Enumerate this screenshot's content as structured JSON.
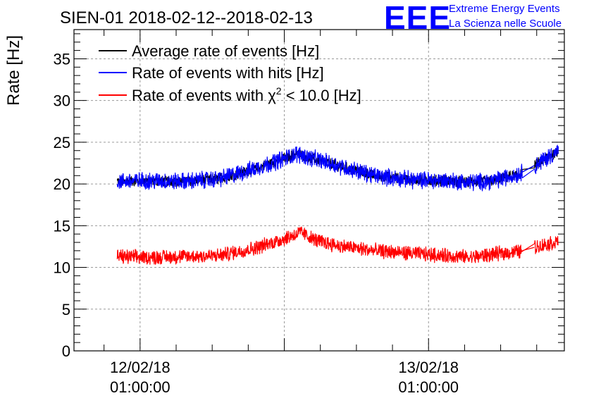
{
  "chart_data": {
    "type": "line",
    "title": "SIEN-01 2018-02-12--2018-02-13",
    "xlabel": "",
    "ylabel": "Rate [Hz]",
    "ylim": [
      0,
      38.5
    ],
    "xlim": [
      0,
      40.8
    ],
    "x_unit": "hours since 2018-02-11 19:30 (approx)",
    "yticks": [
      0,
      5,
      10,
      15,
      20,
      25,
      30,
      35
    ],
    "xticks": [
      {
        "x": 5.5,
        "label_line1": "12/02/18",
        "label_line2": "01:00:00"
      },
      {
        "x": 29.5,
        "label_line1": "13/02/18",
        "label_line2": "01:00:00"
      }
    ],
    "grid": true,
    "legend_position": "top-left",
    "series": [
      {
        "name": "Average rate of events [Hz]",
        "color": "#000000",
        "x": [
          3.6,
          6,
          9,
          12,
          15,
          17,
          18.5,
          20,
          22,
          25,
          28,
          31,
          33,
          35,
          37,
          38.3,
          40.3
        ],
        "values": [
          20.3,
          20.4,
          20.3,
          20.6,
          21.8,
          22.8,
          23.6,
          23.0,
          22.2,
          21.0,
          20.5,
          20.4,
          20.2,
          20.4,
          21.2,
          22.2,
          24.0
        ]
      },
      {
        "name": "Rate of events with hits [Hz]",
        "color": "#0000ff",
        "x": [
          3.6,
          6,
          9,
          12,
          15,
          17,
          18.5,
          20,
          22,
          25,
          28,
          31,
          33,
          35,
          37,
          38.3,
          40.3
        ],
        "values": [
          20.3,
          20.4,
          20.3,
          20.6,
          21.8,
          22.8,
          23.6,
          23.0,
          22.2,
          21.0,
          20.5,
          20.4,
          20.2,
          20.4,
          21.2,
          22.2,
          24.0
        ]
      },
      {
        "name": "Rate of events with χ² < 10.0 [Hz]",
        "color": "#ff0000",
        "x": [
          3.6,
          6,
          9,
          12,
          15,
          17,
          18.9,
          20,
          22,
          25,
          28,
          31,
          33,
          35,
          37,
          38.3,
          40.3
        ],
        "values": [
          11.3,
          11.2,
          11.3,
          11.4,
          12.3,
          13.2,
          14.2,
          13.3,
          12.6,
          12.0,
          11.7,
          11.4,
          11.2,
          11.6,
          11.9,
          12.4,
          13.1
        ]
      }
    ]
  },
  "legend": {
    "items": [
      {
        "label": "Average rate of events [Hz]",
        "color": "#000000"
      },
      {
        "label": "Rate of events with hits [Hz]",
        "color": "#0000ff"
      },
      {
        "label_prefix": "Rate of events with ",
        "label_chi": "χ",
        "label_sup": "2",
        "label_suffix": " < 10.0 [Hz]",
        "color": "#ff0000"
      }
    ]
  },
  "logo": {
    "mark": "EEE",
    "line1": "Extreme Energy Events",
    "line2": "La Scienza nelle Scuole",
    "color": "#0000ff"
  }
}
